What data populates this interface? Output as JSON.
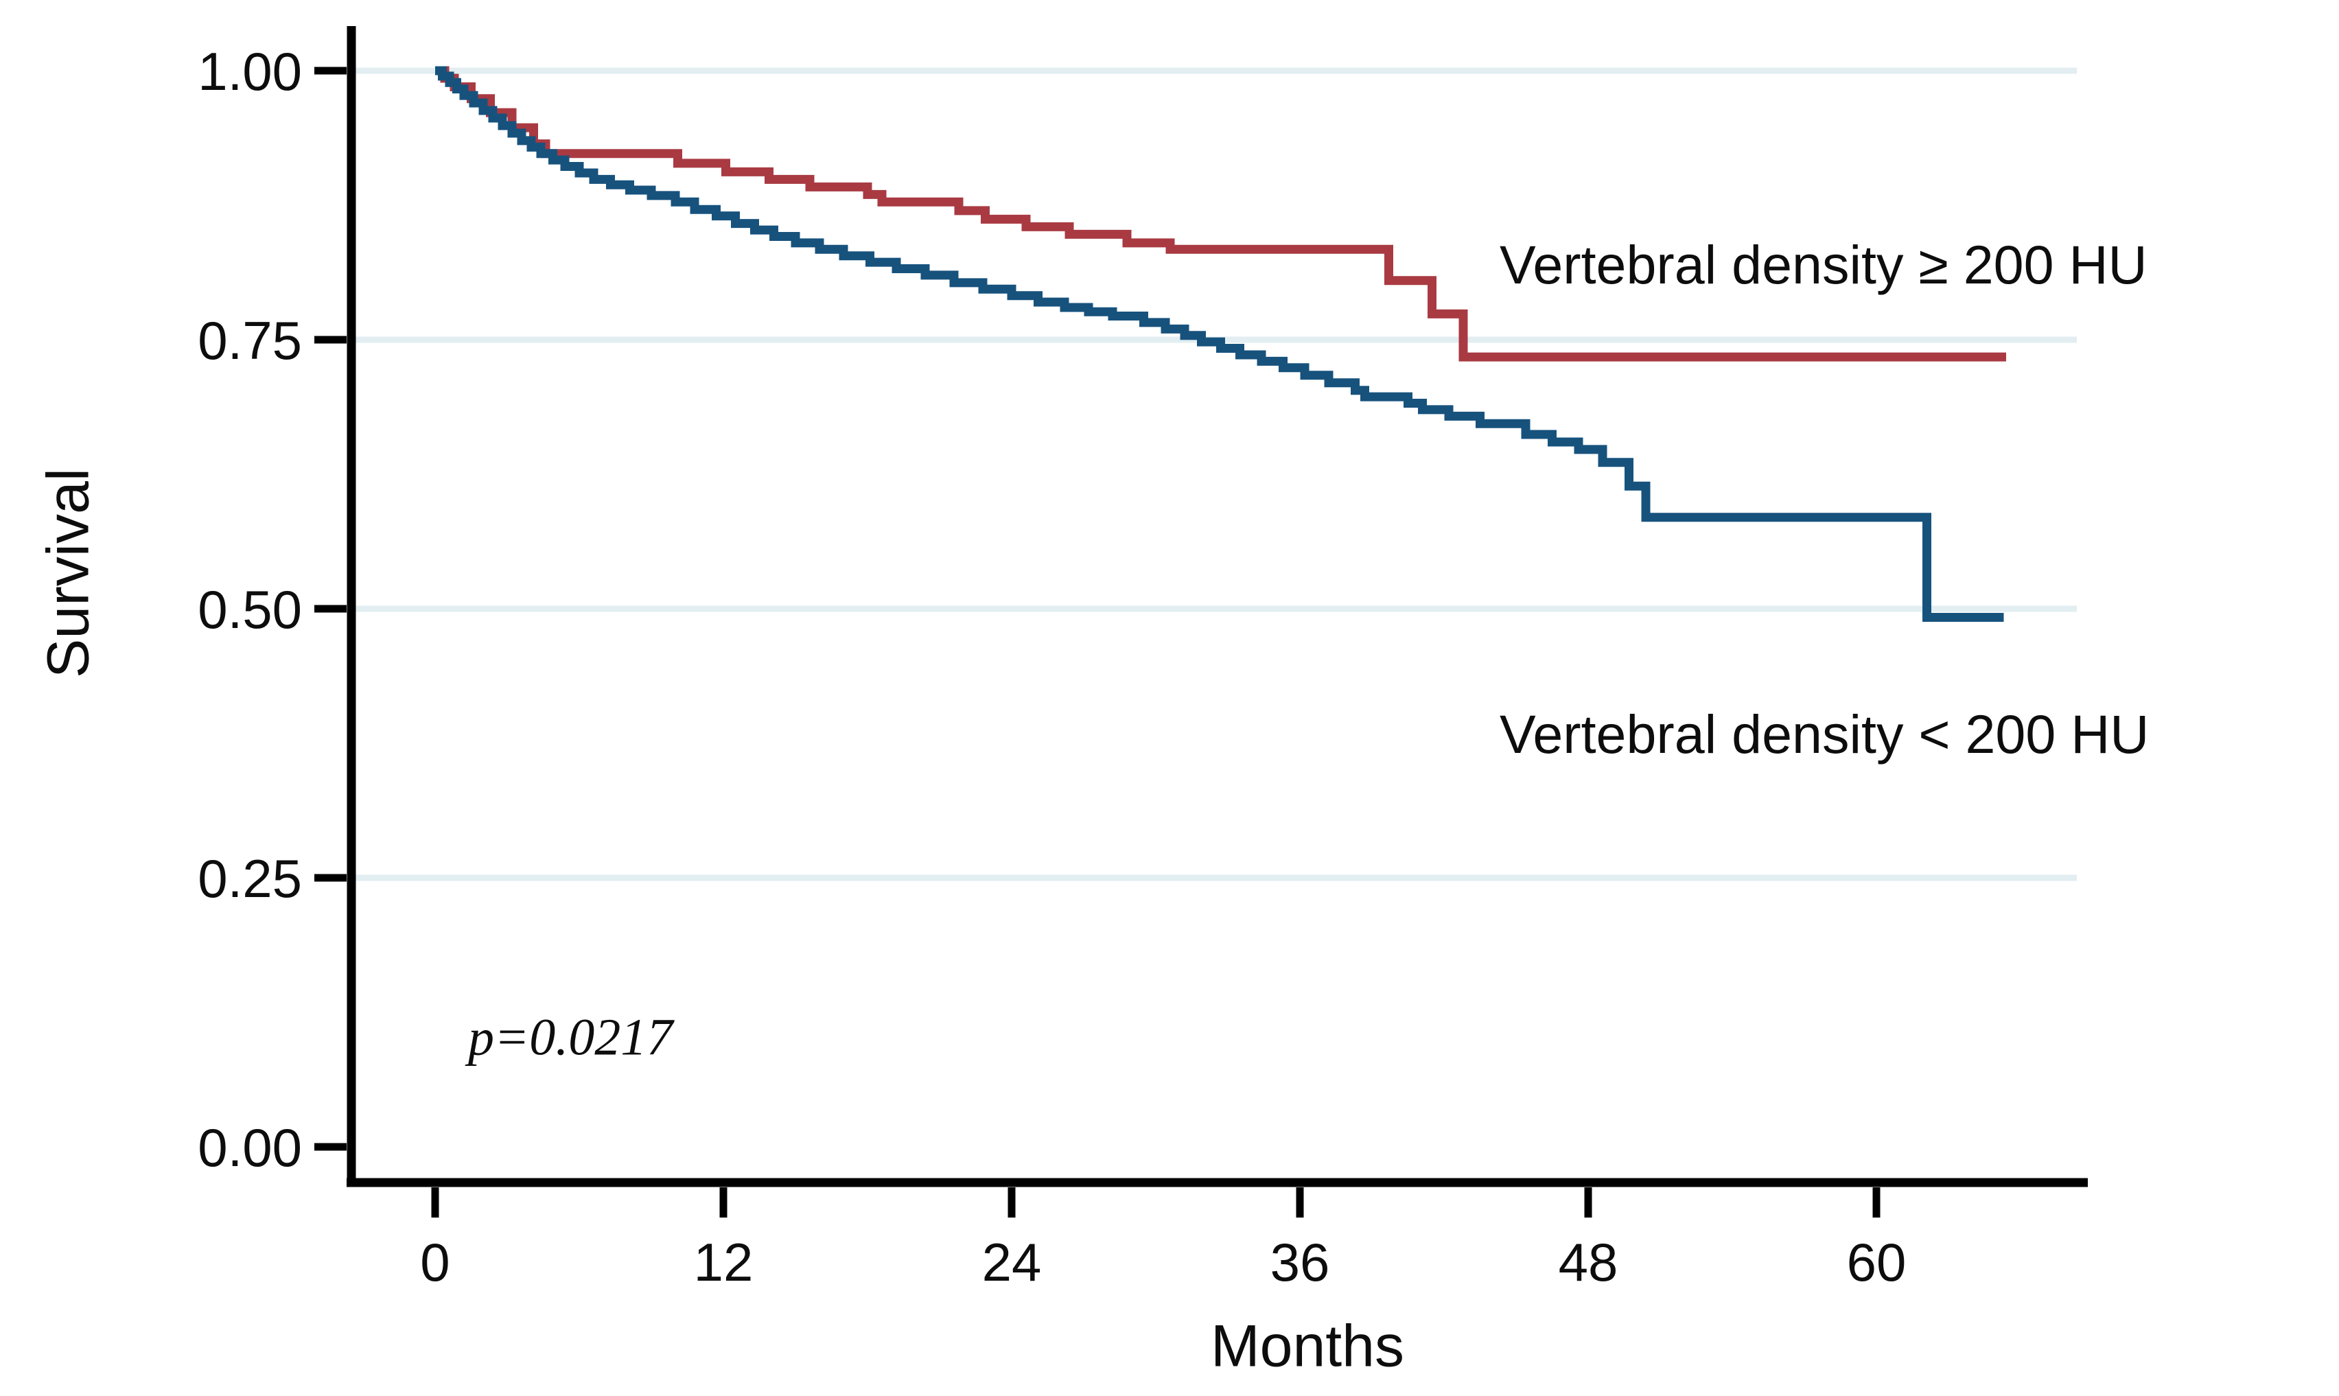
{
  "figure": {
    "background_color": "#ffffff",
    "axis_color": "#000000",
    "grid_color": "#e2eef1",
    "text_color": "#0d0d0d"
  },
  "chart_data": {
    "type": "line",
    "subtype": "kaplan-meier-step",
    "title": "",
    "xlabel": "Months",
    "ylabel": "Survival",
    "xlim": [
      0,
      68.5
    ],
    "ylim": [
      0,
      1.0
    ],
    "grid": "horizontal",
    "grid_lines_at": [
      1.0,
      0.75,
      0.5,
      0.25
    ],
    "legend_position": "right-of-curves (direct labels)",
    "xticks": [
      {
        "value": 0,
        "label": "0"
      },
      {
        "value": 12,
        "label": "12"
      },
      {
        "value": 24,
        "label": "24"
      },
      {
        "value": 36,
        "label": "36"
      },
      {
        "value": 48,
        "label": "48"
      },
      {
        "value": 60,
        "label": "60"
      }
    ],
    "yticks": [
      {
        "value": 1.0,
        "label": "1.00"
      },
      {
        "value": 0.75,
        "label": "0.75"
      },
      {
        "value": 0.5,
        "label": "0.50"
      },
      {
        "value": 0.25,
        "label": "0.25"
      },
      {
        "value": 0.0,
        "label": "0.00"
      }
    ],
    "annotation": {
      "text": "p=0.0217",
      "x_month": 1.4,
      "y_value": 0.1
    },
    "series": [
      {
        "name": "Vertebral density ≥ 200 HU",
        "color": "#a93a42",
        "step": true,
        "end_month": 65.4,
        "points": [
          [
            0,
            1.0
          ],
          [
            0.4,
            0.993
          ],
          [
            0.8,
            0.985
          ],
          [
            1.5,
            0.974
          ],
          [
            2.3,
            0.961
          ],
          [
            3.2,
            0.947
          ],
          [
            4.1,
            0.932
          ],
          [
            4.6,
            0.923
          ],
          [
            10.1,
            0.914
          ],
          [
            12.1,
            0.906
          ],
          [
            13.9,
            0.899
          ],
          [
            15.6,
            0.892
          ],
          [
            18.0,
            0.885
          ],
          [
            18.6,
            0.878
          ],
          [
            21.8,
            0.87
          ],
          [
            22.9,
            0.862
          ],
          [
            24.6,
            0.855
          ],
          [
            26.4,
            0.848
          ],
          [
            28.8,
            0.84
          ],
          [
            30.6,
            0.834
          ],
          [
            39.7,
            0.805
          ],
          [
            41.5,
            0.774
          ],
          [
            42.8,
            0.734
          ]
        ]
      },
      {
        "name": "Vertebral density < 200 HU",
        "color": "#17527d",
        "step": true,
        "end_month": 65.3,
        "points": [
          [
            0,
            1.0
          ],
          [
            0.3,
            0.995
          ],
          [
            0.6,
            0.989
          ],
          [
            0.9,
            0.983
          ],
          [
            1.2,
            0.977
          ],
          [
            1.6,
            0.97
          ],
          [
            2.0,
            0.963
          ],
          [
            2.4,
            0.956
          ],
          [
            2.8,
            0.949
          ],
          [
            3.2,
            0.942
          ],
          [
            3.6,
            0.935
          ],
          [
            4.0,
            0.929
          ],
          [
            4.4,
            0.923
          ],
          [
            4.9,
            0.917
          ],
          [
            5.4,
            0.911
          ],
          [
            6.0,
            0.905
          ],
          [
            6.6,
            0.899
          ],
          [
            7.3,
            0.894
          ],
          [
            8.1,
            0.889
          ],
          [
            9.0,
            0.884
          ],
          [
            10.0,
            0.878
          ],
          [
            10.8,
            0.871
          ],
          [
            11.7,
            0.865
          ],
          [
            12.5,
            0.858
          ],
          [
            13.3,
            0.852
          ],
          [
            14.1,
            0.846
          ],
          [
            15.0,
            0.84
          ],
          [
            16.0,
            0.834
          ],
          [
            17.0,
            0.828
          ],
          [
            18.1,
            0.822
          ],
          [
            19.2,
            0.816
          ],
          [
            20.4,
            0.81
          ],
          [
            21.6,
            0.803
          ],
          [
            22.8,
            0.797
          ],
          [
            24.0,
            0.791
          ],
          [
            25.1,
            0.785
          ],
          [
            26.2,
            0.78
          ],
          [
            27.2,
            0.776
          ],
          [
            28.2,
            0.772
          ],
          [
            29.5,
            0.766
          ],
          [
            30.4,
            0.76
          ],
          [
            31.2,
            0.754
          ],
          [
            31.9,
            0.748
          ],
          [
            32.7,
            0.742
          ],
          [
            33.5,
            0.736
          ],
          [
            34.4,
            0.73
          ],
          [
            35.3,
            0.724
          ],
          [
            36.2,
            0.717
          ],
          [
            37.2,
            0.71
          ],
          [
            38.3,
            0.703
          ],
          [
            38.7,
            0.697
          ],
          [
            40.5,
            0.691
          ],
          [
            41.1,
            0.685
          ],
          [
            42.2,
            0.679
          ],
          [
            43.5,
            0.672
          ],
          [
            45.4,
            0.662
          ],
          [
            46.5,
            0.655
          ],
          [
            47.6,
            0.648
          ],
          [
            48.6,
            0.636
          ],
          [
            49.7,
            0.614
          ],
          [
            50.4,
            0.585
          ],
          [
            62.1,
            0.492
          ]
        ]
      }
    ]
  }
}
